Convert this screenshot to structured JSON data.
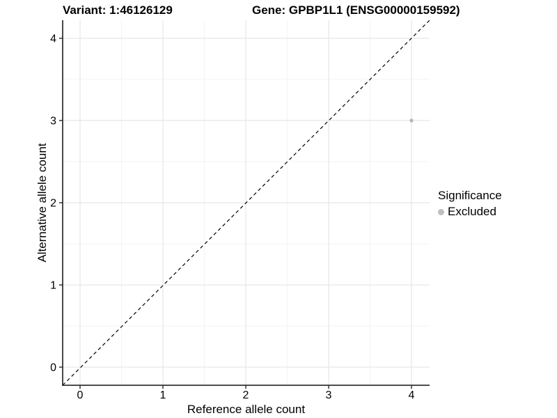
{
  "titles": {
    "variant": "Variant: 1:46126129",
    "gene": "Gene: GPBP1L1 (ENSG00000159592)"
  },
  "chart_data": {
    "type": "scatter",
    "title": "Variant: 1:46126129    Gene: GPBP1L1 (ENSG00000159592)",
    "xlabel": "Reference allele count",
    "ylabel": "Alternative allele count",
    "xlim": [
      -0.21,
      4.22
    ],
    "ylim": [
      -0.21,
      4.22
    ],
    "x_ticks": [
      0,
      1,
      2,
      3,
      4
    ],
    "y_ticks": [
      0,
      1,
      2,
      3,
      4
    ],
    "minor_ticks": [
      0.5,
      1.5,
      2.5,
      3.5
    ],
    "grid": "major+minor",
    "series": [
      {
        "name": "Excluded",
        "points": [
          {
            "x": 4,
            "y": 3
          }
        ]
      }
    ],
    "reference_line": {
      "type": "identity",
      "equation": "y = x",
      "style": "dashed"
    },
    "legend": {
      "title": "Significance",
      "position": "right",
      "entries": [
        {
          "label": "Excluded",
          "color": "#bebebe"
        }
      ]
    },
    "colors": {
      "point": "#b5b5b5",
      "legend_key": "#bebebe",
      "grid_major": "#e7e7e7",
      "grid_minor": "#f3f3f3",
      "axis_line": "#333333",
      "dashed_line": "#000000",
      "background": "#ffffff"
    }
  }
}
